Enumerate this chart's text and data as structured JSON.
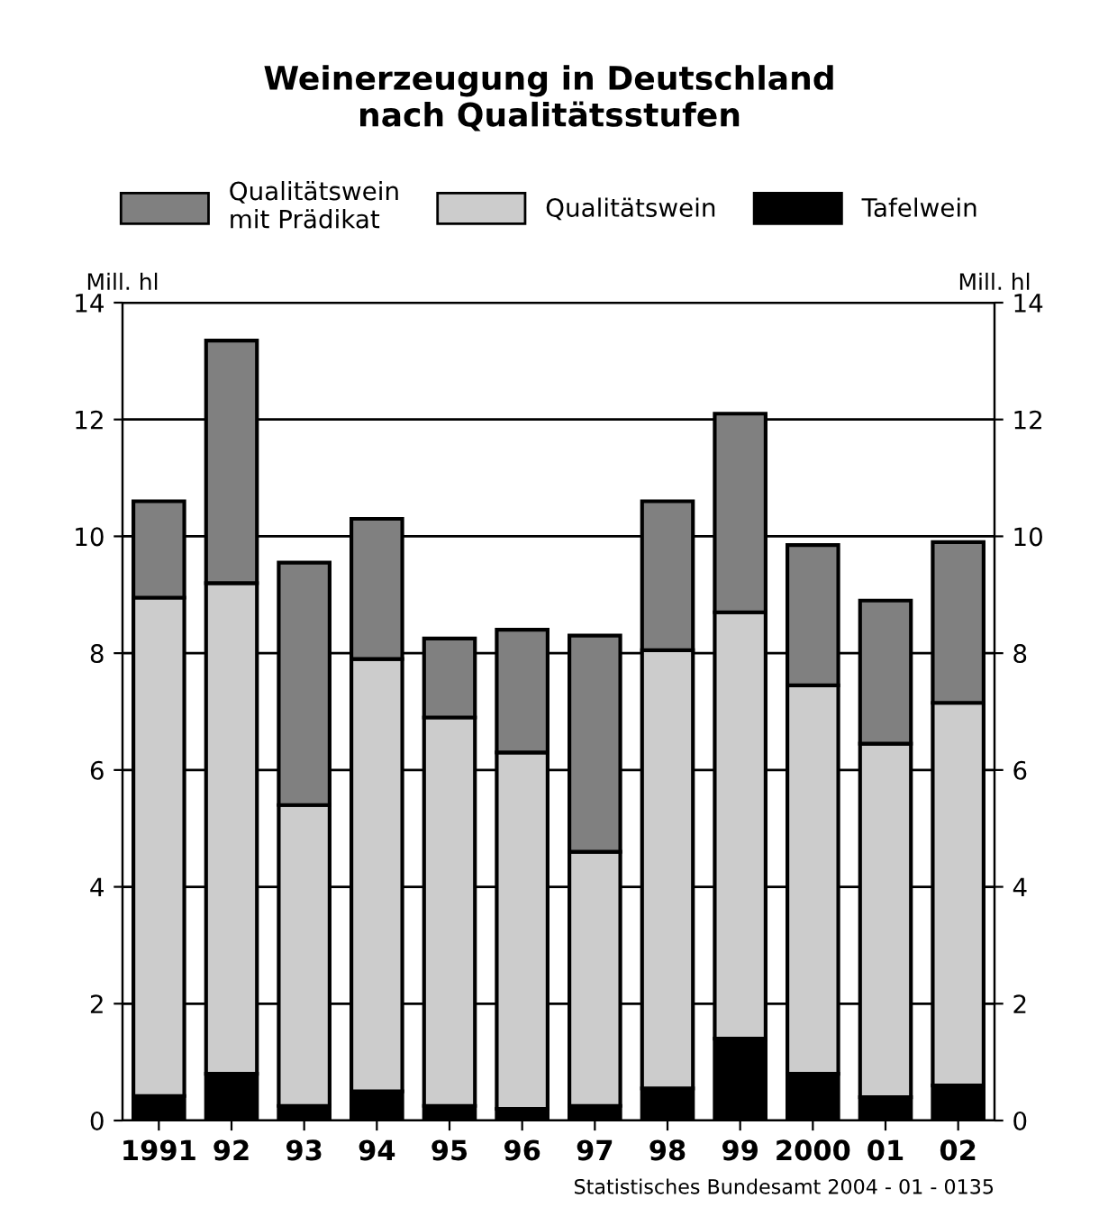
{
  "chart_data": {
    "type": "bar",
    "title": "Weinerzeugung in Deutschland\nnach Qualitätsstufen",
    "ylabel": "Mill. hl",
    "y2label": "Mill. hl",
    "categories": [
      "1991",
      "92",
      "93",
      "94",
      "95",
      "96",
      "97",
      "98",
      "99",
      "2000",
      "01",
      "02"
    ],
    "stacked": true,
    "series": [
      {
        "name": "Tafelwein",
        "color": "#000000",
        "values": [
          0.42,
          0.8,
          0.25,
          0.5,
          0.25,
          0.2,
          0.25,
          0.55,
          1.4,
          0.8,
          0.4,
          0.6
        ]
      },
      {
        "name": "Qualitätswein",
        "color": "#cccccc",
        "values": [
          8.53,
          8.4,
          5.15,
          7.4,
          6.65,
          6.1,
          4.35,
          7.5,
          7.3,
          6.65,
          6.05,
          6.55
        ]
      },
      {
        "name": "Qualitätswein\nmit Prädikat",
        "color": "#808080",
        "values": [
          1.65,
          4.15,
          4.15,
          2.4,
          1.35,
          2.1,
          3.7,
          2.55,
          3.4,
          2.4,
          2.45,
          2.75
        ]
      }
    ],
    "ylim": [
      0,
      14
    ],
    "yticks": [
      0,
      2,
      4,
      6,
      8,
      10,
      12,
      14
    ],
    "y2lim": [
      0,
      14
    ],
    "y2ticks": [
      0,
      2,
      4,
      6,
      8,
      10,
      12,
      14
    ],
    "grid": "y",
    "legend": "top",
    "annotations": [
      "Statistisches Bundesamt 2004 - 01 - 0135"
    ]
  }
}
